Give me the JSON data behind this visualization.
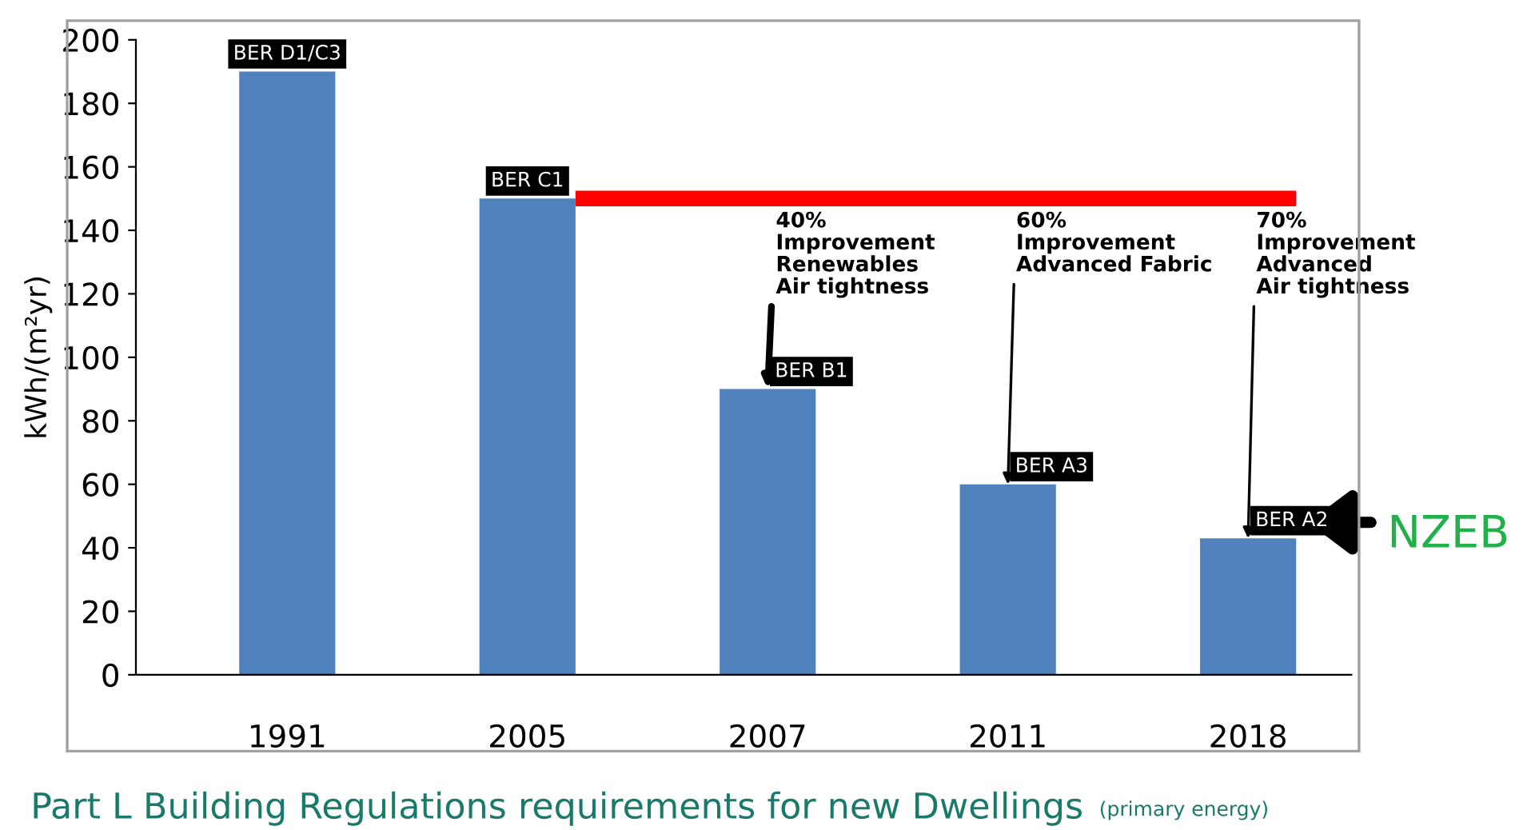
{
  "chart_data": {
    "type": "bar",
    "title": "Part L Building Regulations requirements for new Dwellings",
    "subtitle": "(primary energy)",
    "ylabel": "kWh/(m²yr)",
    "categories": [
      "1991",
      "2005",
      "2007",
      "2011",
      "2018"
    ],
    "values": [
      190,
      150,
      90,
      60,
      43
    ],
    "value_labels": [
      "BER D1/C3",
      "BER C1",
      "BER B1",
      "BER A3",
      "BER A2"
    ],
    "color": "#4f81bd",
    "ylim": [
      0,
      200
    ],
    "yticks": [
      0,
      20,
      40,
      60,
      80,
      100,
      120,
      140,
      160,
      180,
      200
    ],
    "ref_lines": [
      {
        "axis": "y",
        "value": 150,
        "color": "#ff0000"
      }
    ],
    "annotations": [
      {
        "text": "40%\nImprovement\nRenewables\nAir tightness",
        "x": "2007",
        "y": 90
      },
      {
        "text": "60%\nImprovement\nAdvanced Fabric",
        "x": "2011",
        "y": 60
      },
      {
        "text": "70%\nImprovement\nAdvanced\nAir tightness",
        "x": "2018",
        "y": 43
      },
      "NZEB"
    ]
  }
}
